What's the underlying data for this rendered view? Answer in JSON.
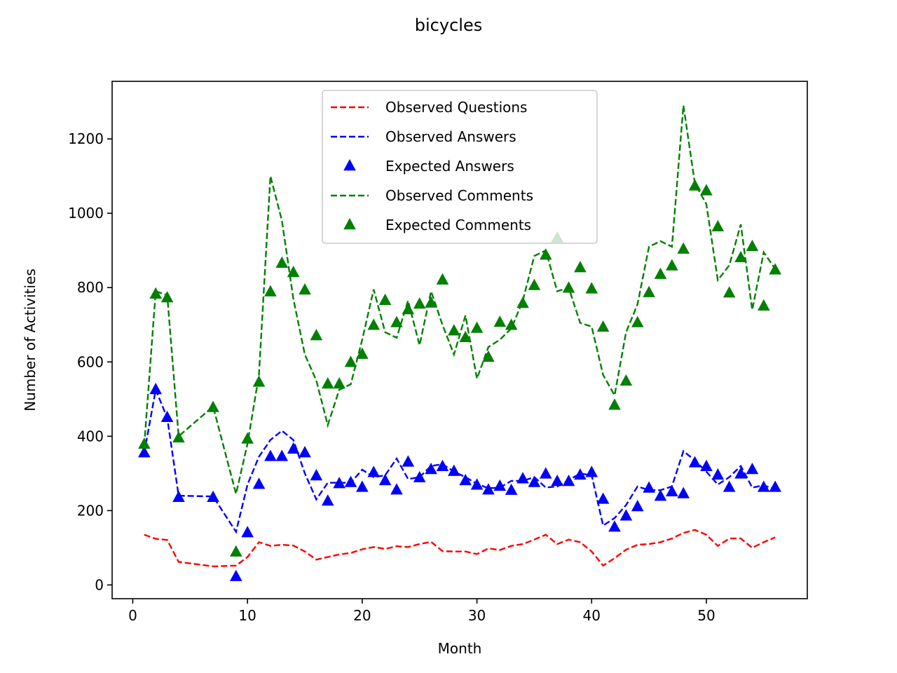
{
  "chart_data": {
    "type": "line",
    "title": "bicycles",
    "xlabel": "Month",
    "ylabel": "Number of Activities",
    "xlim": [
      -1.8,
      58.8
    ],
    "ylim": [
      -37,
      1355
    ],
    "xticks": [
      0,
      10,
      20,
      30,
      40,
      50
    ],
    "yticks": [
      0,
      200,
      400,
      600,
      800,
      1000,
      1200
    ],
    "xtick_labels": [
      "0",
      "10",
      "20",
      "30",
      "40",
      "50"
    ],
    "ytick_labels": [
      "0",
      "200",
      "400",
      "600",
      "800",
      "1000",
      "1200"
    ],
    "grid": false,
    "legend_position": "top-center",
    "x": [
      1,
      2,
      3,
      4,
      7,
      9,
      10,
      11,
      12,
      13,
      14,
      15,
      16,
      17,
      18,
      19,
      20,
      21,
      22,
      23,
      24,
      25,
      26,
      27,
      28,
      29,
      30,
      31,
      32,
      33,
      34,
      35,
      36,
      37,
      38,
      39,
      40,
      41,
      42,
      43,
      44,
      45,
      46,
      47,
      48,
      49,
      50,
      51,
      52,
      53,
      54,
      55,
      56
    ],
    "series": [
      {
        "name": "Observed Questions",
        "style": "dashed-line",
        "color": "#ff0000",
        "values": [
          135,
          124,
          121,
          62,
          50,
          52,
          75,
          115,
          105,
          108,
          106,
          90,
          68,
          75,
          82,
          86,
          96,
          102,
          97,
          104,
          102,
          110,
          116,
          91,
          90,
          90,
          83,
          98,
          94,
          105,
          110,
          122,
          135,
          110,
          122,
          115,
          90,
          52,
          72,
          95,
          108,
          110,
          115,
          125,
          140,
          148,
          135,
          105,
          125,
          125,
          100,
          115,
          128
        ]
      },
      {
        "name": "Observed Answers",
        "style": "dashed-line",
        "color": "#0000ff",
        "values": [
          355,
          525,
          450,
          240,
          238,
          143,
          270,
          345,
          390,
          415,
          390,
          300,
          230,
          275,
          275,
          275,
          310,
          290,
          295,
          340,
          285,
          290,
          320,
          325,
          305,
          290,
          272,
          260,
          262,
          280,
          280,
          290,
          262,
          265,
          282,
          300,
          295,
          160,
          180,
          215,
          265,
          255,
          255,
          265,
          360,
          335,
          305,
          270,
          290,
          320,
          262,
          268,
          258
        ]
      },
      {
        "name": "Expected Answers",
        "style": "triangle-markers",
        "color": "#0000ff",
        "values": [
          355,
          525,
          450,
          235,
          235,
          22,
          140,
          270,
          345,
          345,
          365,
          355,
          293,
          225,
          272,
          275,
          262,
          302,
          280,
          255,
          330,
          288,
          310,
          318,
          305,
          280,
          268,
          255,
          265,
          254,
          285,
          275,
          298,
          278,
          278,
          295,
          302,
          230,
          155,
          185,
          210,
          260,
          238,
          250,
          245,
          328,
          318,
          295,
          262,
          298,
          310,
          262,
          262
        ]
      },
      {
        "name": "Observed Comments",
        "style": "dashed-line",
        "color": "#008000",
        "values": [
          375,
          790,
          780,
          400,
          480,
          245,
          380,
          565,
          1100,
          980,
          770,
          620,
          550,
          430,
          525,
          540,
          660,
          795,
          680,
          665,
          765,
          645,
          790,
          700,
          620,
          725,
          555,
          640,
          660,
          690,
          765,
          885,
          900,
          790,
          800,
          705,
          695,
          565,
          510,
          680,
          755,
          910,
          925,
          910,
          1290,
          1080,
          1025,
          820,
          860,
          970,
          740,
          895,
          850
        ]
      },
      {
        "name": "Expected Comments",
        "style": "triangle-markers",
        "color": "#008000",
        "values": [
          378,
          782,
          772,
          395,
          477,
          88,
          392,
          545,
          788,
          865,
          840,
          793,
          670,
          540,
          540,
          598,
          620,
          698,
          765,
          705,
          740,
          755,
          758,
          820,
          683,
          665,
          690,
          612,
          706,
          698,
          757,
          805,
          887,
          933,
          798,
          853,
          796,
          693,
          483,
          548,
          705,
          786,
          835,
          858,
          903,
          1073,
          1060,
          963,
          785,
          880,
          910,
          750,
          847
        ]
      }
    ]
  }
}
